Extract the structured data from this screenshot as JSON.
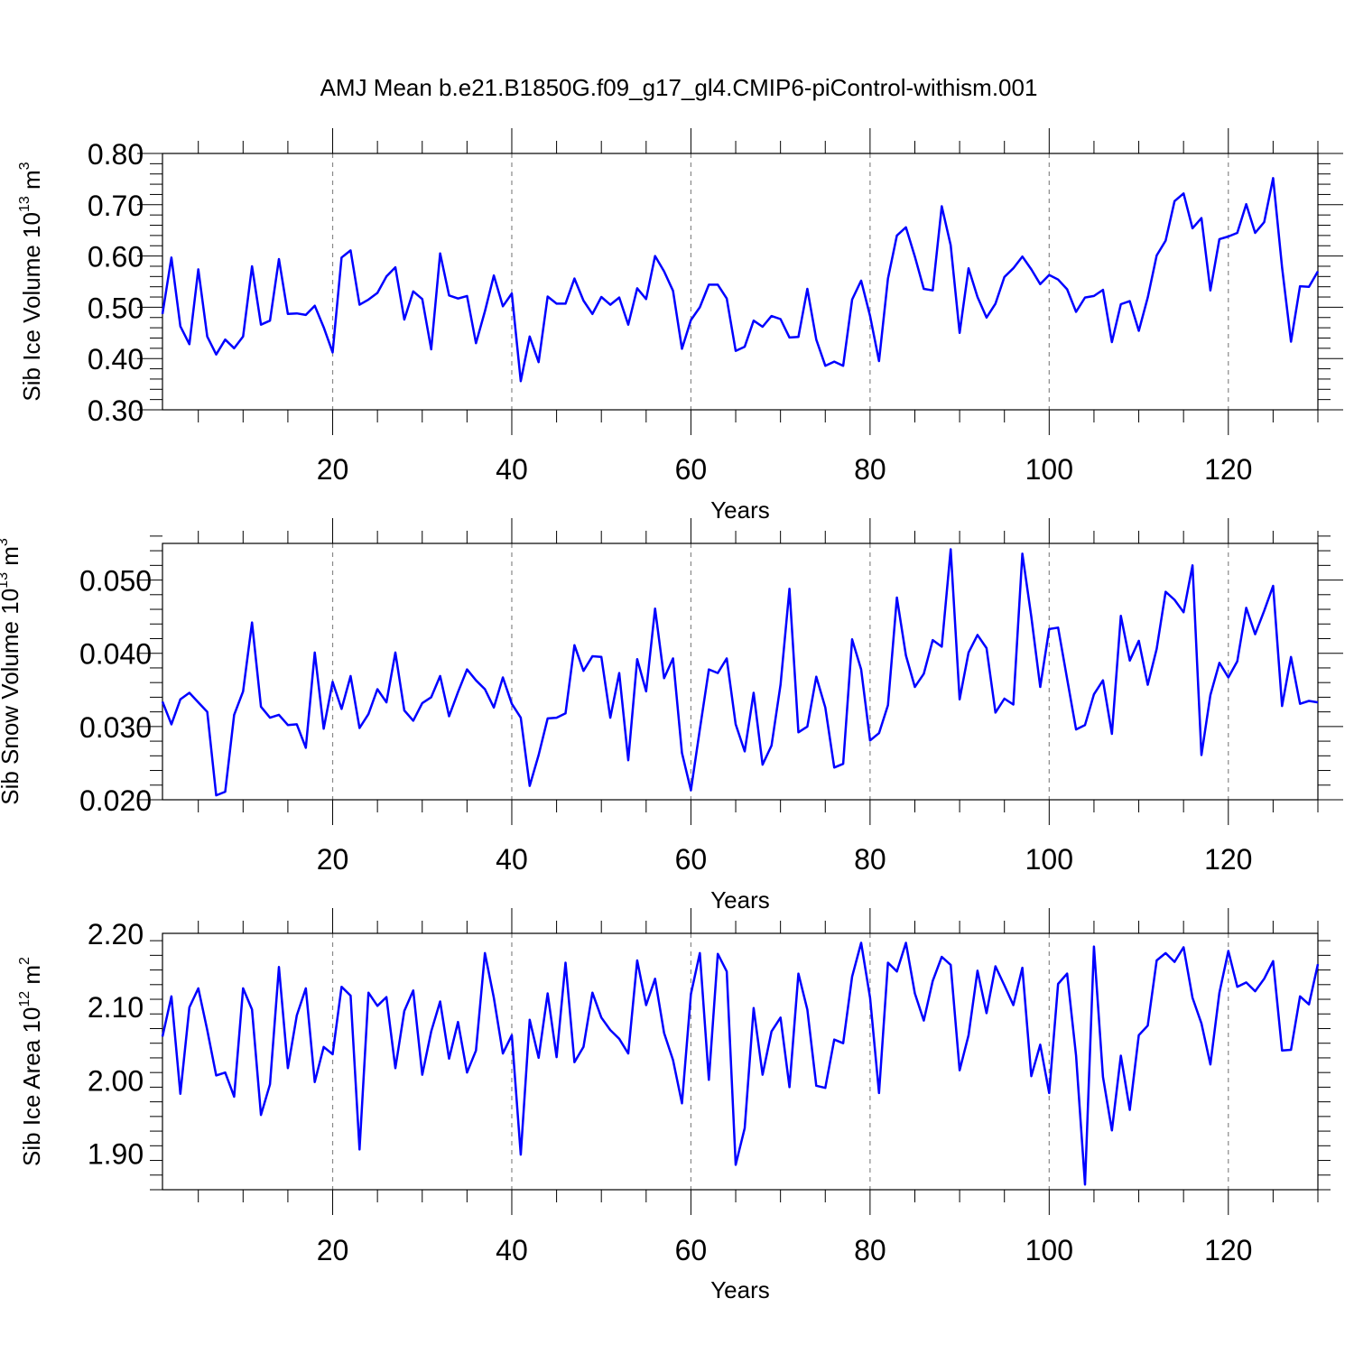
{
  "figure": {
    "title": "AMJ Mean b.e21.B1850G.f09_g17_gl4.CMIP6-piControl-withism.001"
  },
  "colors": {
    "series": "#0000ff",
    "grid": "#888888",
    "axis": "#000000"
  },
  "chart_data": [
    {
      "type": "line",
      "title": "",
      "ylabel": "Sib Ice Volume 10",
      "ylabel_exp": "13",
      "ylabel_unit": " m",
      "ylabel_unit_exp": "3",
      "xlabel": "Years",
      "xlim": [
        1,
        130
      ],
      "ylim": [
        0.3,
        0.8
      ],
      "xticks": [
        20,
        40,
        60,
        80,
        100,
        120
      ],
      "xtick_labels": [
        "20",
        "40",
        "60",
        "80",
        "100",
        "120"
      ],
      "yticks": [
        0.3,
        0.4,
        0.5,
        0.6,
        0.7,
        0.8
      ],
      "ytick_labels": [
        "0.30",
        "0.40",
        "0.50",
        "0.60",
        "0.70",
        "0.80"
      ],
      "grid": "vertical dashed at x ticks",
      "x_start": 1,
      "values": [
        0.487,
        0.597,
        0.463,
        0.428,
        0.574,
        0.443,
        0.408,
        0.437,
        0.42,
        0.443,
        0.58,
        0.466,
        0.474,
        0.594,
        0.487,
        0.488,
        0.485,
        0.503,
        0.461,
        0.412,
        0.597,
        0.611,
        0.505,
        0.515,
        0.528,
        0.56,
        0.578,
        0.476,
        0.531,
        0.516,
        0.418,
        0.605,
        0.523,
        0.517,
        0.522,
        0.43,
        0.492,
        0.562,
        0.502,
        0.527,
        0.356,
        0.443,
        0.393,
        0.521,
        0.507,
        0.507,
        0.556,
        0.513,
        0.487,
        0.52,
        0.505,
        0.519,
        0.466,
        0.537,
        0.516,
        0.6,
        0.57,
        0.532,
        0.419,
        0.475,
        0.5,
        0.544,
        0.544,
        0.517,
        0.415,
        0.423,
        0.474,
        0.462,
        0.483,
        0.477,
        0.441,
        0.442,
        0.536,
        0.437,
        0.386,
        0.394,
        0.386,
        0.515,
        0.552,
        0.483,
        0.395,
        0.556,
        0.64,
        0.656,
        0.599,
        0.536,
        0.533,
        0.697,
        0.621,
        0.45,
        0.576,
        0.52,
        0.48,
        0.507,
        0.559,
        0.576,
        0.599,
        0.574,
        0.545,
        0.563,
        0.554,
        0.535,
        0.491,
        0.519,
        0.522,
        0.534,
        0.432,
        0.506,
        0.512,
        0.454,
        0.519,
        0.601,
        0.63,
        0.707,
        0.722,
        0.654,
        0.674,
        0.533,
        0.633,
        0.638,
        0.645,
        0.701,
        0.645,
        0.666,
        0.752,
        0.578,
        0.433,
        0.541,
        0.54,
        0.57
      ]
    },
    {
      "type": "line",
      "title": "",
      "ylabel": "Sib Snow Volume 10",
      "ylabel_exp": "13",
      "ylabel_unit": " m",
      "ylabel_unit_exp": "3",
      "xlabel": "Years",
      "xlim": [
        1,
        130
      ],
      "ylim": [
        0.02,
        0.055
      ],
      "xticks": [
        20,
        40,
        60,
        80,
        100,
        120
      ],
      "xtick_labels": [
        "20",
        "40",
        "60",
        "80",
        "100",
        "120"
      ],
      "yticks": [
        0.02,
        0.03,
        0.04,
        0.05
      ],
      "ytick_labels": [
        "0.020",
        "0.030",
        "0.040",
        "0.050"
      ],
      "grid": "vertical dashed at x ticks",
      "x_start": 1,
      "values": [
        0.0334,
        0.0303,
        0.0337,
        0.0346,
        0.0333,
        0.032,
        0.0206,
        0.0211,
        0.0316,
        0.0348,
        0.0442,
        0.0327,
        0.0312,
        0.0316,
        0.0302,
        0.0303,
        0.0271,
        0.0401,
        0.0297,
        0.0361,
        0.0324,
        0.0369,
        0.0298,
        0.0317,
        0.0351,
        0.0333,
        0.0401,
        0.0322,
        0.0308,
        0.0332,
        0.034,
        0.0369,
        0.0314,
        0.0347,
        0.0378,
        0.0363,
        0.0351,
        0.0326,
        0.0367,
        0.0331,
        0.0312,
        0.0219,
        0.0261,
        0.0311,
        0.0312,
        0.0318,
        0.0411,
        0.0376,
        0.0396,
        0.0395,
        0.0312,
        0.0373,
        0.0254,
        0.0392,
        0.0348,
        0.0461,
        0.0366,
        0.0393,
        0.0264,
        0.0213,
        0.0296,
        0.0378,
        0.0373,
        0.0393,
        0.0303,
        0.0266,
        0.0346,
        0.0248,
        0.0274,
        0.0357,
        0.0488,
        0.0292,
        0.03,
        0.0368,
        0.0326,
        0.0244,
        0.0249,
        0.0419,
        0.0378,
        0.0281,
        0.0291,
        0.0329,
        0.0476,
        0.0397,
        0.0354,
        0.0372,
        0.0418,
        0.0409,
        0.0542,
        0.0337,
        0.0401,
        0.0425,
        0.0407,
        0.0319,
        0.0338,
        0.033,
        0.0536,
        0.045,
        0.0354,
        0.0433,
        0.0435,
        0.0365,
        0.0296,
        0.0302,
        0.0344,
        0.0363,
        0.029,
        0.0451,
        0.039,
        0.0417,
        0.0357,
        0.0406,
        0.0484,
        0.0473,
        0.0456,
        0.052,
        0.0261,
        0.0343,
        0.0387,
        0.0367,
        0.0389,
        0.0462,
        0.0426,
        0.0458,
        0.0492,
        0.0328,
        0.0395,
        0.0331,
        0.0335,
        0.0333
      ]
    },
    {
      "type": "line",
      "title": "",
      "ylabel": "Sib Ice Area 10",
      "ylabel_exp": "12",
      "ylabel_unit": " m",
      "ylabel_unit_exp": "2",
      "xlabel": "Years",
      "xlim": [
        1,
        130
      ],
      "ylim": [
        1.85,
        2.2
      ],
      "xticks": [
        20,
        40,
        60,
        80,
        100,
        120
      ],
      "xtick_labels": [
        "20",
        "40",
        "60",
        "80",
        "100",
        "120"
      ],
      "yticks": [
        1.9,
        2.0,
        2.1,
        2.2
      ],
      "ytick_labels": [
        "1.90",
        "2.00",
        "2.10",
        "2.20"
      ],
      "grid": "vertical dashed at x ticks",
      "x_start": 1,
      "values": [
        2.059,
        2.114,
        1.981,
        2.099,
        2.125,
        2.068,
        2.006,
        2.01,
        1.977,
        2.125,
        2.096,
        1.952,
        1.994,
        2.154,
        2.016,
        2.088,
        2.125,
        1.997,
        2.045,
        2.035,
        2.127,
        2.115,
        1.905,
        2.119,
        2.101,
        2.113,
        2.016,
        2.094,
        2.122,
        2.007,
        2.066,
        2.107,
        2.029,
        2.079,
        2.01,
        2.04,
        2.173,
        2.112,
        2.036,
        2.061,
        1.898,
        2.082,
        2.03,
        2.118,
        2.031,
        2.16,
        2.024,
        2.045,
        2.119,
        2.085,
        2.068,
        2.056,
        2.036,
        2.163,
        2.102,
        2.138,
        2.064,
        2.027,
        1.968,
        2.117,
        2.173,
        2.0,
        2.172,
        2.148,
        1.884,
        1.934,
        2.098,
        2.007,
        2.066,
        2.085,
        1.99,
        2.145,
        2.096,
        1.992,
        1.989,
        2.055,
        2.05,
        2.141,
        2.187,
        2.112,
        1.982,
        2.16,
        2.148,
        2.187,
        2.118,
        2.081,
        2.135,
        2.168,
        2.157,
        2.013,
        2.061,
        2.149,
        2.091,
        2.155,
        2.129,
        2.102,
        2.153,
        2.005,
        2.048,
        1.982,
        2.131,
        2.145,
        2.033,
        1.857,
        2.182,
        2.004,
        1.931,
        2.033,
        1.959,
        2.061,
        2.074,
        2.163,
        2.173,
        2.161,
        2.181,
        2.112,
        2.077,
        2.021,
        2.119,
        2.176,
        2.127,
        2.133,
        2.121,
        2.138,
        2.162,
        2.04,
        2.041,
        2.114,
        2.103,
        2.158
      ]
    }
  ]
}
